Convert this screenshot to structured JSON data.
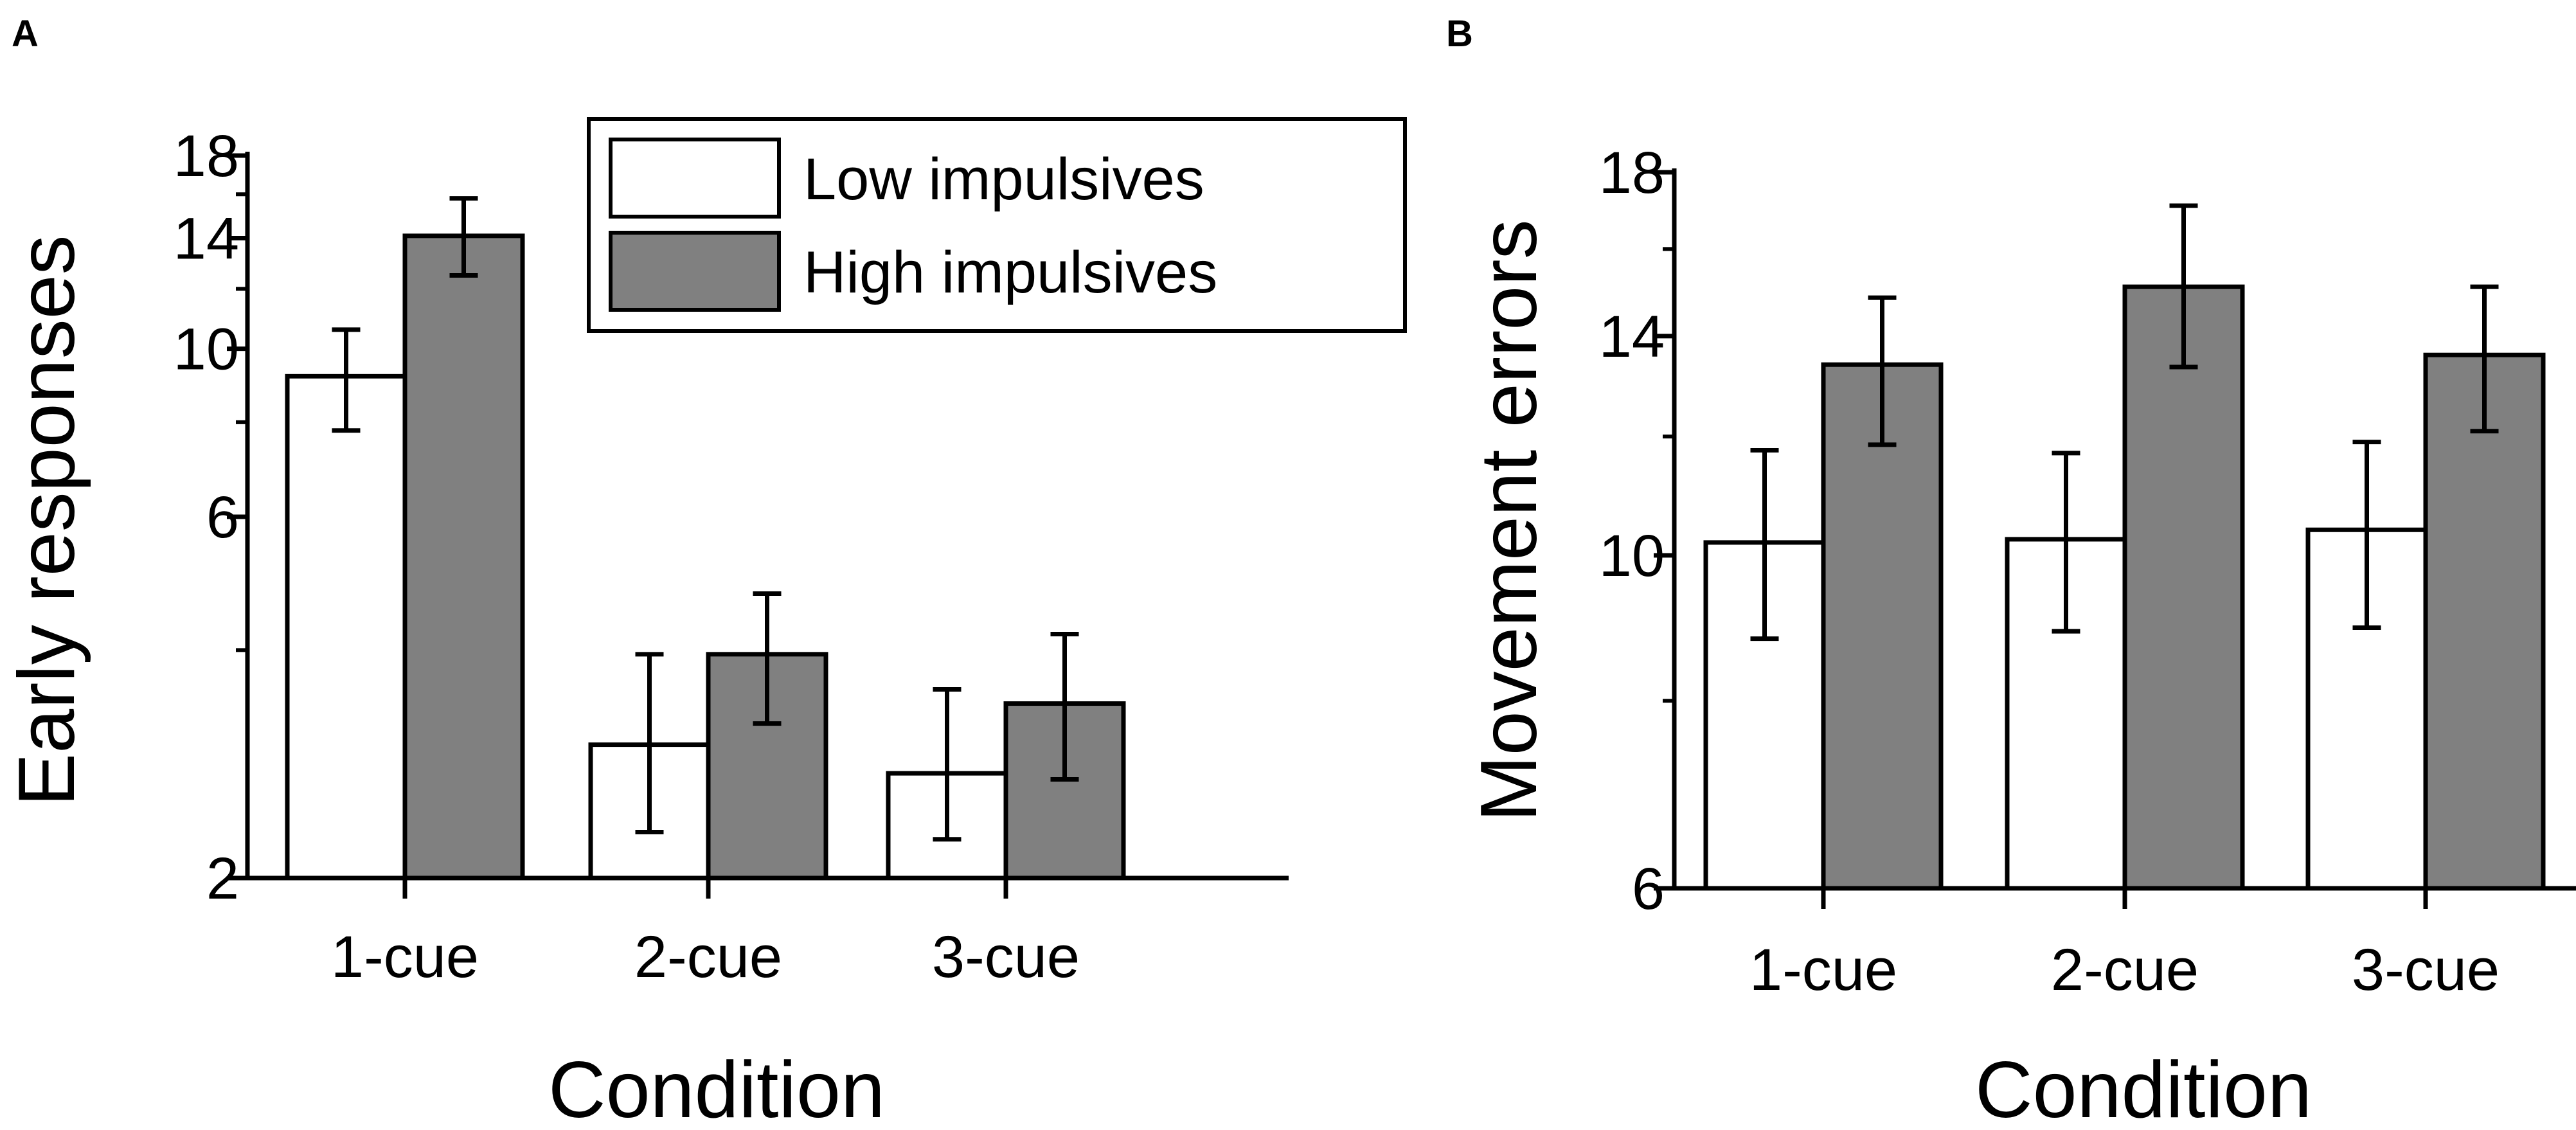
{
  "chart_data": [
    {
      "panel": "A",
      "type": "bar",
      "yscale": "log",
      "categories": [
        "1-cue",
        "2-cue",
        "3-cue"
      ],
      "series": [
        {
          "name": "Low impulsives",
          "values": [
            9.2,
            3.0,
            2.75
          ],
          "err_low": [
            7.8,
            2.3,
            2.25
          ],
          "err_high": [
            10.6,
            3.95,
            3.55
          ],
          "color": "#ffffff"
        },
        {
          "name": "High impulsives",
          "values": [
            14.1,
            3.95,
            3.4
          ],
          "err_low": [
            12.5,
            3.2,
            2.7
          ],
          "err_high": [
            15.8,
            4.75,
            4.2
          ],
          "color": "#808080"
        }
      ],
      "ylabel": "Early responses",
      "xlabel": "Condition",
      "ylim": [
        2,
        18
      ],
      "yticks": [
        2,
        6,
        10,
        14,
        18
      ],
      "ytick_labels": [
        "2",
        "6",
        "10",
        "14",
        "18"
      ],
      "yminor": [
        4,
        8,
        12,
        16
      ],
      "legend": {
        "position": "top-right",
        "entries": [
          "Low impulsives",
          "High impulsives"
        ]
      }
    },
    {
      "panel": "B",
      "type": "bar",
      "yscale": "log",
      "categories": [
        "1-cue",
        "2-cue",
        "3-cue"
      ],
      "series": [
        {
          "name": "Low impulsives",
          "values": [
            10.2,
            10.25,
            10.4
          ],
          "err_low": [
            8.8,
            8.9,
            8.95
          ],
          "err_high": [
            11.75,
            11.7,
            11.9
          ],
          "color": "#ffffff"
        },
        {
          "name": "High impulsives",
          "values": [
            13.4,
            15.1,
            13.6
          ],
          "err_low": [
            11.85,
            13.35,
            12.1
          ],
          "err_high": [
            14.85,
            17.1,
            15.1
          ],
          "color": "#808080"
        }
      ],
      "ylabel": "Movement errors",
      "xlabel": "Condition",
      "ylim": [
        6,
        18
      ],
      "yticks": [
        6,
        10,
        14,
        18
      ],
      "ytick_labels": [
        "6",
        "10",
        "14",
        "18"
      ],
      "yminor": [
        8,
        12,
        16
      ]
    }
  ]
}
